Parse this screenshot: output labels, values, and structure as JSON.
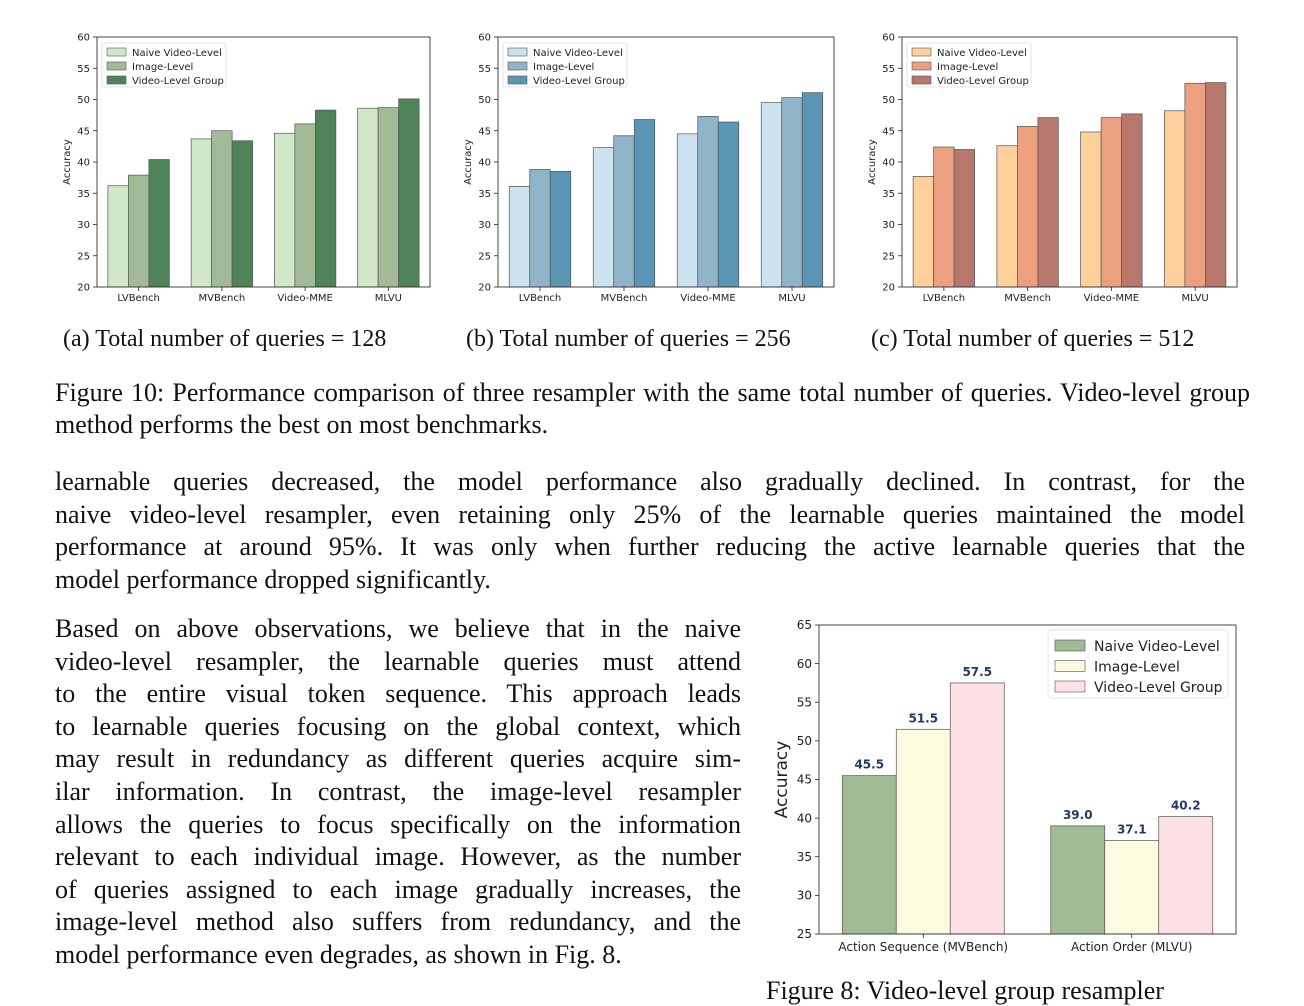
{
  "chart_data": [
    {
      "type": "bar",
      "categories": [
        "LVBench",
        "MVBench",
        "Video-MME",
        "MLVU"
      ],
      "series": [
        {
          "name": "Naive Video-Level",
          "values": [
            36.2,
            43.7,
            44.6,
            48.6
          ]
        },
        {
          "name": "Image-Level",
          "values": [
            37.9,
            45.0,
            46.1,
            48.7
          ]
        },
        {
          "name": "Video-Level Group",
          "values": [
            40.4,
            43.4,
            48.3,
            50.1
          ]
        }
      ],
      "colors": [
        "#d1e8c8",
        "#a0bb95",
        "#4f8459"
      ],
      "ylabel": "Accuracy",
      "ylim": [
        20,
        60
      ],
      "yticks": [
        20,
        25,
        30,
        35,
        40,
        45,
        50,
        55,
        60
      ],
      "legend": "top-left",
      "grid": false
    },
    {
      "type": "bar",
      "categories": [
        "LVBench",
        "MVBench",
        "Video-MME",
        "MLVU"
      ],
      "series": [
        {
          "name": "Naive Video-Level",
          "values": [
            36.1,
            42.3,
            44.5,
            49.5
          ]
        },
        {
          "name": "Image-Level",
          "values": [
            38.8,
            44.2,
            47.3,
            50.3
          ]
        },
        {
          "name": "Video-Level Group",
          "values": [
            38.5,
            46.8,
            46.4,
            51.1
          ]
        }
      ],
      "colors": [
        "#cce2ee",
        "#90b4c8",
        "#5a96b4"
      ],
      "ylabel": "Accuracy",
      "ylim": [
        20,
        60
      ],
      "yticks": [
        20,
        25,
        30,
        35,
        40,
        45,
        50,
        55,
        60
      ],
      "legend": "top-left",
      "grid": false
    },
    {
      "type": "bar",
      "categories": [
        "LVBench",
        "MVBench",
        "Video-MME",
        "MLVU"
      ],
      "series": [
        {
          "name": "Naive Video-Level",
          "values": [
            37.7,
            42.6,
            44.8,
            48.2
          ]
        },
        {
          "name": "Image-Level",
          "values": [
            42.4,
            45.7,
            47.1,
            52.6
          ]
        },
        {
          "name": "Video-Level Group",
          "values": [
            42.0,
            47.1,
            47.7,
            52.7
          ]
        }
      ],
      "colors": [
        "#fdd09c",
        "#eca07f",
        "#b7776c"
      ],
      "ylabel": "Accuracy",
      "ylim": [
        20,
        60
      ],
      "yticks": [
        20,
        25,
        30,
        35,
        40,
        45,
        50,
        55,
        60
      ],
      "legend": "top-left",
      "grid": false
    },
    {
      "type": "bar",
      "categories": [
        "Action Sequence (MVBench)",
        "Action Order (MLVU)"
      ],
      "series": [
        {
          "name": "Naive Video-Level",
          "values": [
            45.5,
            39.0
          ],
          "labels": [
            "45.5",
            "39.0"
          ]
        },
        {
          "name": "Image-Level",
          "values": [
            51.5,
            37.1
          ],
          "labels": [
            "51.5",
            "37.1"
          ]
        },
        {
          "name": "Video-Level Group",
          "values": [
            57.5,
            40.2
          ],
          "labels": [
            "57.5",
            "40.2"
          ]
        }
      ],
      "colors": [
        "#a0bb95",
        "#fcfbe0",
        "#fde0e4"
      ],
      "label_color": "#1f3b66",
      "ylabel": "Accuracy",
      "ylim": [
        25,
        65
      ],
      "yticks": [
        25,
        30,
        35,
        40,
        45,
        50,
        55,
        60,
        65
      ],
      "legend": "top-right",
      "grid": false
    }
  ],
  "subcaptions": [
    "(a) Total number of queries = 128",
    "(b) Total number of queries = 256",
    "(c) Total number of queries = 512"
  ],
  "figure_caption": "Figure 10: Performance comparison of three resampler with the same total number of queries. Video-level group method performs the best on most benchmarks.",
  "paragraph1_lines": [
    "learnable queries decreased, the model performance also gradually declined. In contrast, for the",
    "naive video-level resampler, even retaining only 25% of the learnable queries maintained the model",
    "performance at around 95%. It was only when further reducing the active learnable queries that the",
    "model performance dropped significantly."
  ],
  "paragraph2_lines": [
    "Based on above observations, we believe that in the naive",
    "video-level resampler, the learnable queries must attend",
    "to the entire visual token sequence. This approach leads",
    "to learnable queries focusing on the global context, which",
    "may result in redundancy as different queries acquire sim-",
    "ilar information. In contrast, the image-level resampler",
    "allows the queries to focus specifically on the information",
    "relevant to each individual image. However, as the number",
    "of queries assigned to each image gradually increases, the",
    "image-level method also suffers from redundancy, and the",
    "model performance even degrades, as shown in Fig. 8."
  ],
  "cutoff_caption": "Figure 8: Video-level group resampler"
}
